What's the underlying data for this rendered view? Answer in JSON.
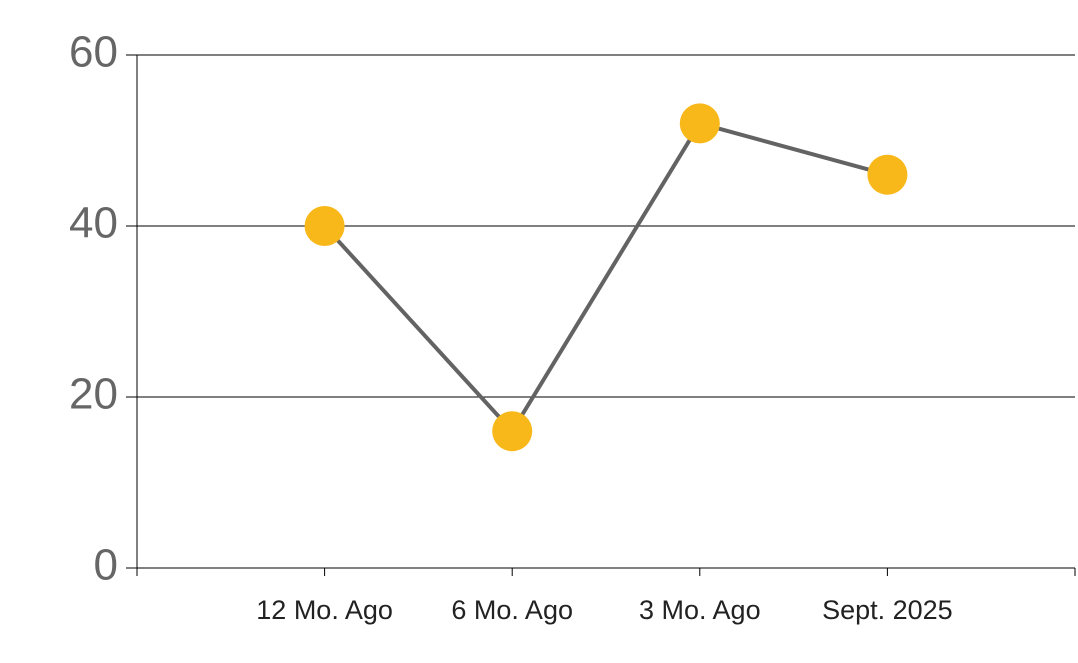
{
  "chart_data": {
    "type": "line",
    "categories": [
      "12 Mo. Ago",
      "6 Mo. Ago",
      "3 Mo. Ago",
      "Sept. 2025"
    ],
    "values": [
      40,
      16,
      52,
      46
    ],
    "color": "#f8b819",
    "line_color": "#636363",
    "ylim": [
      0,
      60
    ],
    "yticks": [
      0,
      20,
      40,
      60
    ],
    "grid": true
  }
}
